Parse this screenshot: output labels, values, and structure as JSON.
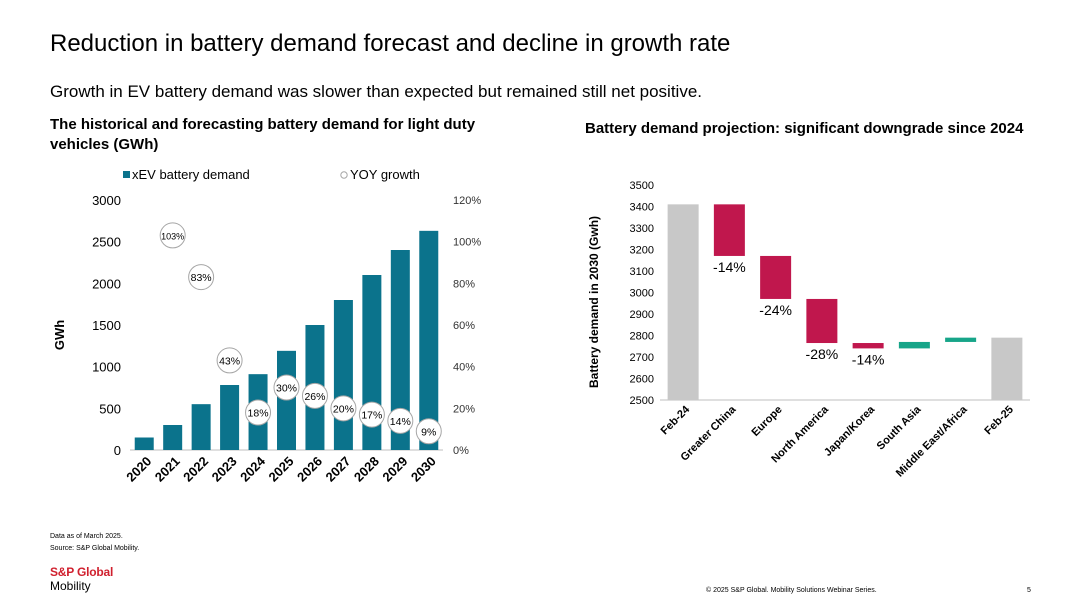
{
  "slide": {
    "title": "Reduction in battery demand forecast and decline in growth rate",
    "subtitle": "Growth in EV battery demand was slower than expected but remained still net positive.",
    "notes": [
      "Data as of March 2025.",
      "Source: S&P Global Mobility."
    ],
    "logo": {
      "line1": "S&P Global",
      "line2": "Mobility"
    },
    "copyright": "© 2025 S&P Global. Mobility Solutions Webinar Series.",
    "page_number": "5"
  },
  "colors": {
    "bar_teal": "#0b738c",
    "decrease": "#c0174d",
    "increase": "#17a589",
    "total_gray": "#c8c8c8",
    "bubble_border": "#a6a6a6",
    "logo_red": "#d0202e"
  },
  "chart_data": [
    {
      "type": "bar",
      "title": "The historical and forecasting battery demand for light duty vehicles (GWh)",
      "categories": [
        "2020",
        "2021",
        "2022",
        "2023",
        "2024",
        "2025",
        "2026",
        "2027",
        "2028",
        "2029",
        "2030"
      ],
      "series": [
        {
          "name": "xEV battery demand",
          "type": "bar",
          "axis": "left",
          "values": [
            150,
            300,
            550,
            780,
            910,
            1190,
            1500,
            1800,
            2100,
            2400,
            2630
          ]
        },
        {
          "name": "YOY growth",
          "type": "bubble",
          "axis": "right",
          "values": [
            null,
            103,
            83,
            43,
            18,
            30,
            26,
            20,
            17,
            14,
            9
          ],
          "labels": [
            "",
            "103%",
            "83%",
            "43%",
            "18%",
            "30%",
            "26%",
            "20%",
            "17%",
            "14%",
            "9%"
          ]
        }
      ],
      "ylabel": "GWh",
      "ylim": [
        0,
        3000
      ],
      "yticks": [
        "0",
        "500",
        "1000",
        "1500",
        "2000",
        "2500",
        "3000"
      ],
      "y2lim": [
        0,
        120
      ],
      "y2ticks": [
        "0%",
        "20%",
        "40%",
        "60%",
        "80%",
        "100%",
        "120%"
      ],
      "legend_position": "top"
    },
    {
      "type": "waterfall",
      "title": "Battery demand projection: significant downgrade since 2024",
      "categories": [
        "Feb-24",
        "Greater China",
        "Europe",
        "North America",
        "Japan/Korea",
        "South Asia",
        "Middle East/Africa",
        "Feb-25"
      ],
      "steps": [
        {
          "kind": "total",
          "start": 2500,
          "end": 3410
        },
        {
          "kind": "decrease",
          "start": 3410,
          "end": 3170,
          "label": "-14%"
        },
        {
          "kind": "decrease",
          "start": 3170,
          "end": 2970,
          "label": "-24%"
        },
        {
          "kind": "decrease",
          "start": 2970,
          "end": 2765,
          "label": "-28%"
        },
        {
          "kind": "decrease",
          "start": 2765,
          "end": 2740,
          "label": "-14%"
        },
        {
          "kind": "increase",
          "start": 2740,
          "end": 2770,
          "label": ""
        },
        {
          "kind": "increase",
          "start": 2770,
          "end": 2790,
          "label": ""
        },
        {
          "kind": "total",
          "start": 2500,
          "end": 2790
        }
      ],
      "ylabel": "Battery demand in 2030 (Gwh)",
      "ylim": [
        2500,
        3500
      ],
      "yticks": [
        "2500",
        "2600",
        "2700",
        "2800",
        "2900",
        "3000",
        "3100",
        "3200",
        "3300",
        "3400",
        "3500"
      ]
    }
  ]
}
